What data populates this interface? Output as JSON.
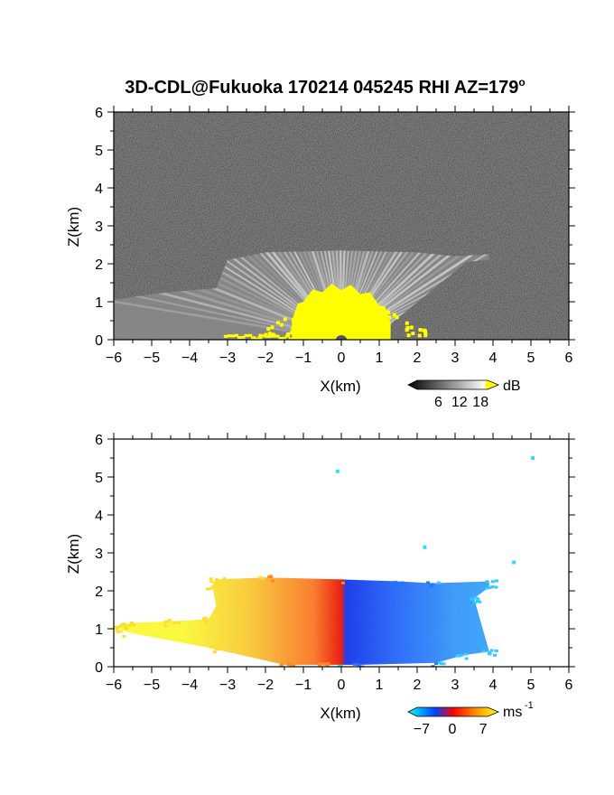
{
  "title": "3D-CDL@Fukuoka 170214 045245 RHI AZ=179",
  "title_degree_mark": "o",
  "chart_data": [
    {
      "type": "heatmap",
      "panel": "reflectivity",
      "xlabel": "X(km)",
      "ylabel": "Z(km)",
      "xlim": [
        -6,
        6
      ],
      "ylim": [
        0,
        6
      ],
      "xticks": [
        "-6",
        "-5",
        "-4",
        "-3",
        "-2",
        "-1",
        "0",
        "1",
        "2",
        "3",
        "4",
        "5",
        "6"
      ],
      "yticks": [
        "0",
        "1",
        "2",
        "3",
        "4",
        "5",
        "6"
      ],
      "colorbar": {
        "unit": "dB",
        "ticks": [
          "6",
          "12",
          "18"
        ],
        "range": [
          0,
          20
        ]
      },
      "background": "noise",
      "signal_region": {
        "top_height_by_x": [
          [
            -6,
            1.05
          ],
          [
            -5,
            1.2
          ],
          [
            -4,
            1.3
          ],
          [
            -3.3,
            1.35
          ],
          [
            -3.0,
            2.1
          ],
          [
            -2.0,
            2.3
          ],
          [
            0,
            2.35
          ],
          [
            2.0,
            2.3
          ],
          [
            3.0,
            2.2
          ],
          [
            3.9,
            2.25
          ]
        ],
        "saturated_cone_top_by_x": [
          [
            -1.3,
            0.5
          ],
          [
            -1.0,
            1.0
          ],
          [
            -0.5,
            1.25
          ],
          [
            0,
            1.3
          ],
          [
            0.5,
            1.2
          ],
          [
            1.0,
            0.9
          ],
          [
            1.3,
            0.45
          ]
        ]
      },
      "colors": {
        "saturation": "#ffff00",
        "background": "#141414"
      }
    },
    {
      "type": "heatmap",
      "panel": "doppler_velocity",
      "xlabel": "X(km)",
      "ylabel": "Z(km)",
      "xlim": [
        -6,
        6
      ],
      "ylim": [
        0,
        6
      ],
      "xticks": [
        "-6",
        "-5",
        "-4",
        "-3",
        "-2",
        "-1",
        "0",
        "1",
        "2",
        "3",
        "4",
        "5",
        "6"
      ],
      "yticks": [
        "0",
        "1",
        "2",
        "3",
        "4",
        "5",
        "6"
      ],
      "colorbar": {
        "unit": "ms",
        "unit_exponent": "-1",
        "ticks": [
          "-7",
          "0",
          "7"
        ],
        "range": [
          -8,
          8
        ]
      },
      "velocity_sign": {
        "x_lt_0": "positive (away, yellow-orange-red)",
        "x_gt_0": "negative (toward, blue-cyan)"
      },
      "isolated_points": [
        [
          -0.1,
          5.15
        ],
        [
          2.2,
          3.15
        ],
        [
          4.55,
          2.75
        ],
        [
          5.05,
          5.5
        ]
      ],
      "colors": {
        "negative_max": "#00ffff",
        "negative_mid": "#0044ff",
        "zero": "#ff0000",
        "positive_max": "#ffff00"
      }
    }
  ]
}
